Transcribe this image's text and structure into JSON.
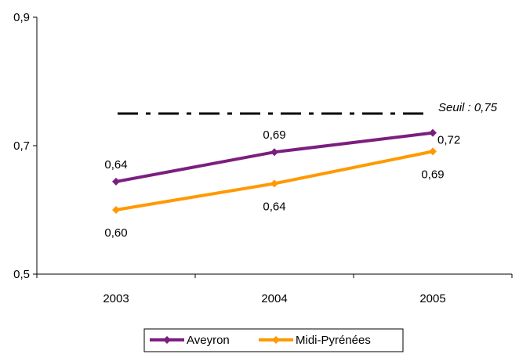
{
  "chart_data": {
    "type": "line",
    "x": [
      "2003",
      "2004",
      "2005"
    ],
    "ylim": [
      0.5,
      0.9
    ],
    "yticks": [
      {
        "value": 0.5,
        "label": "0,5"
      },
      {
        "value": 0.7,
        "label": "0,7"
      },
      {
        "value": 0.9,
        "label": "0,9"
      }
    ],
    "series": [
      {
        "name": "Aveyron",
        "color": "#7B1F7F",
        "values": [
          0.644,
          0.69,
          0.72
        ],
        "labels": [
          "0,64",
          "0,69",
          "0,72"
        ],
        "label_position": [
          "above",
          "above",
          "right"
        ]
      },
      {
        "name": "Midi-Pyrénées",
        "color": "#FF9900",
        "values": [
          0.6,
          0.641,
          0.691
        ],
        "labels": [
          "0,60",
          "0,64",
          "0,69"
        ],
        "label_position": [
          "below",
          "below",
          "below"
        ]
      }
    ],
    "threshold": {
      "value": 0.75,
      "label": "Seuil : 0,75",
      "style": "dash-dot",
      "color": "#000000"
    },
    "legend_position": "bottom",
    "grid": false
  }
}
